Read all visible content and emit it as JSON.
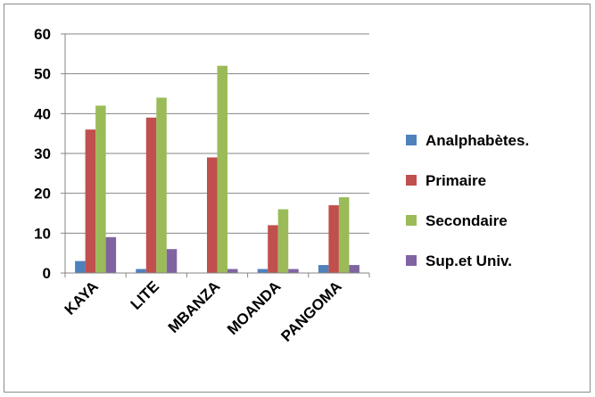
{
  "chart_data": {
    "type": "bar",
    "title": "",
    "xlabel": "",
    "ylabel": "",
    "categories": [
      "KAYA",
      "LITE",
      "MBANZA",
      "MOANDA",
      "PANGOMA"
    ],
    "ylim": [
      0,
      60
    ],
    "yticks": [
      0,
      10,
      20,
      30,
      40,
      50,
      60
    ],
    "grid": true,
    "legend_position": "right",
    "series": [
      {
        "name": "Analphabètes.",
        "color": "#4f81bd",
        "values": [
          3,
          1,
          0,
          1,
          2
        ]
      },
      {
        "name": "Primaire",
        "color": "#c0504d",
        "values": [
          36,
          39,
          29,
          12,
          17
        ]
      },
      {
        "name": "Secondaire",
        "color": "#9bbb59",
        "values": [
          42,
          44,
          52,
          16,
          19
        ]
      },
      {
        "name": "Sup.et Univ.",
        "color": "#8064a2",
        "values": [
          9,
          6,
          1,
          1,
          2
        ]
      }
    ]
  }
}
